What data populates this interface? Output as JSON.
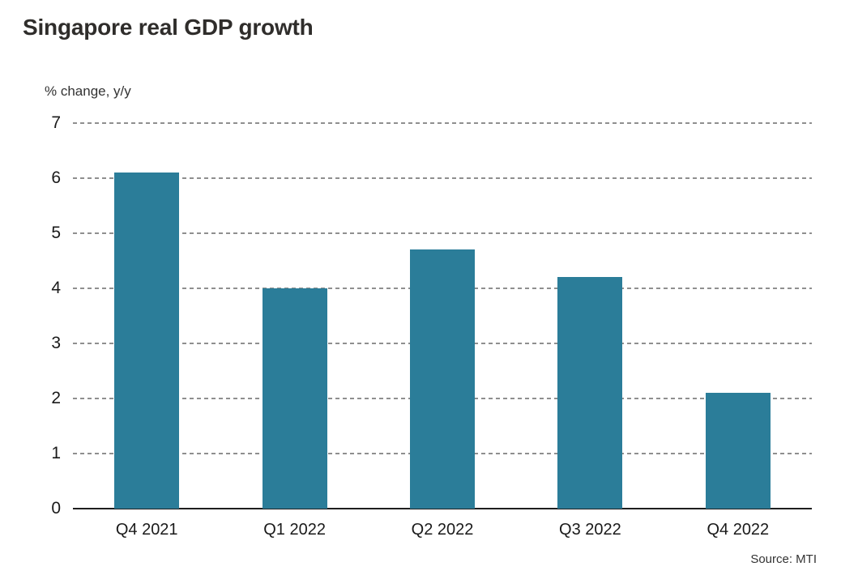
{
  "header": {
    "title": "Singapore real GDP growth"
  },
  "chart_data": {
    "type": "bar",
    "title": "Singapore real GDP growth",
    "ylabel": "% change, y/y",
    "xlabel": "",
    "categories": [
      "Q4 2021",
      "Q1 2022",
      "Q2 2022",
      "Q3 2022",
      "Q4 2022"
    ],
    "values": [
      6.1,
      4.0,
      4.7,
      4.2,
      2.1
    ],
    "ylim": [
      0,
      7
    ],
    "yticks": [
      0,
      1,
      2,
      3,
      4,
      5,
      6,
      7
    ],
    "grid": "horizontal-dashed",
    "legend": "none",
    "bar_color": "#2b7d99",
    "source": "Source: MTI"
  }
}
